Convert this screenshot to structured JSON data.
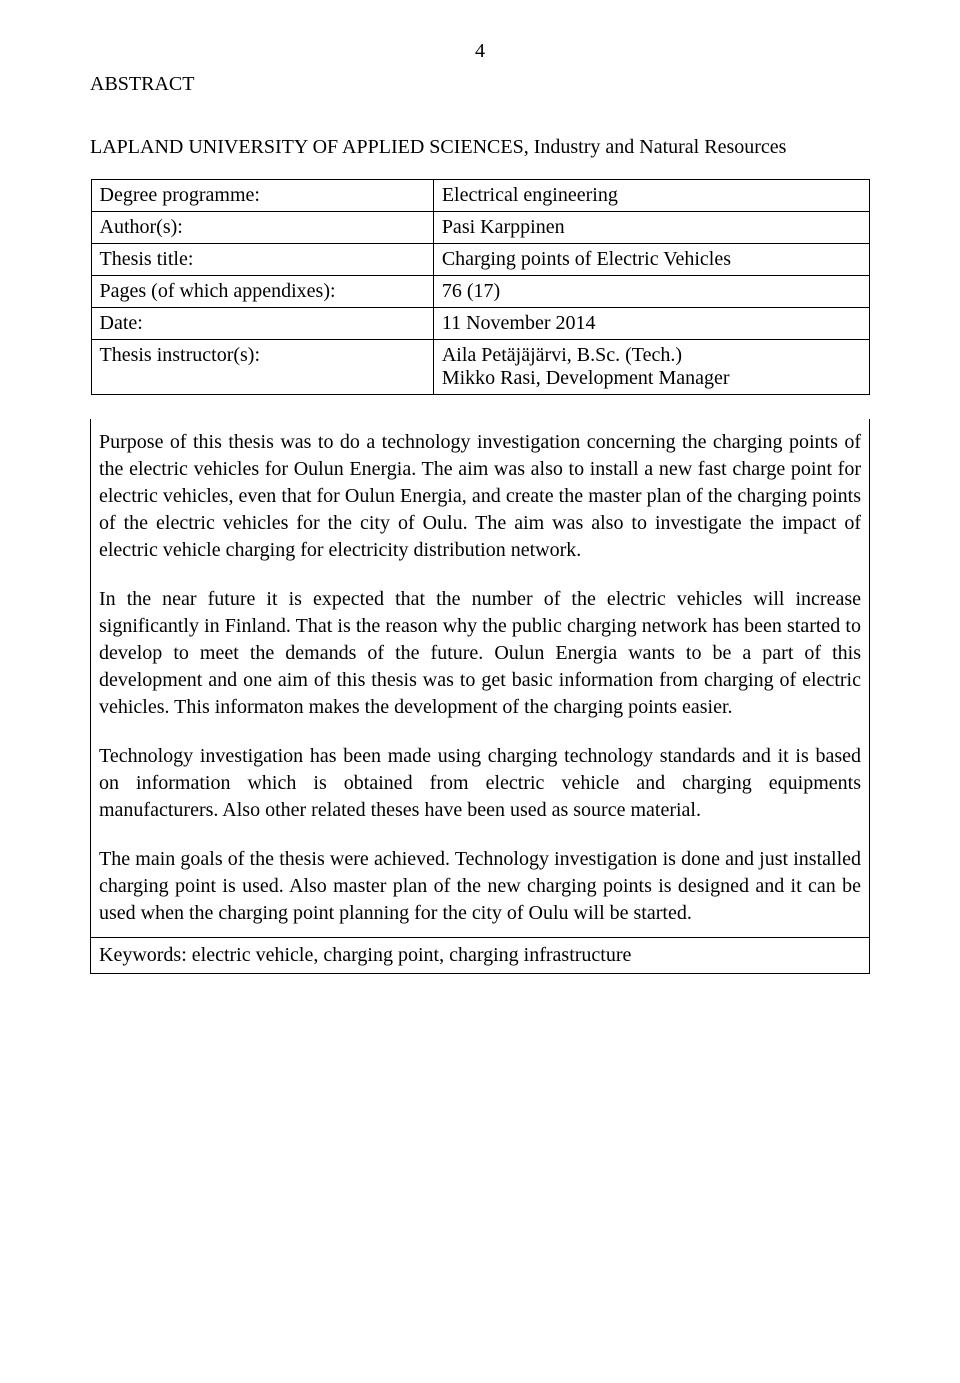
{
  "page_number": "4",
  "section_title": "ABSTRACT",
  "university_line": "LAPLAND UNIVERSITY OF APPLIED SCIENCES, Industry and Natural Resources",
  "meta": {
    "degree_label": "Degree programme:",
    "degree_value": "Electrical engineering",
    "author_label": "Author(s):",
    "author_value": "Pasi Karppinen",
    "title_label": "Thesis title:",
    "title_value": "Charging points of Electric Vehicles",
    "pages_label": "Pages (of which appendixes):",
    "pages_value": "76 (17)",
    "date_label": "Date:",
    "date_value": "11 November 2014",
    "instr_label": "Thesis instructor(s):",
    "instr_value_1": "Aila Petäjäjärvi, B.Sc. (Tech.)",
    "instr_value_2": "Mikko Rasi, Development Manager"
  },
  "body": {
    "p1": "Purpose of this thesis was to do a technology investigation concerning the charging points of the electric vehicles for Oulun Energia. The aim was also to install a new fast charge point for electric vehicles, even that for Oulun Energia, and create the master plan of the charging points of the electric vehicles for the city of Oulu. The aim was also to investigate the impact of electric vehicle charging for electricity distribution network.",
    "p2": "In the near future it is expected that the number of the electric vehicles will increase significantly in Finland. That is the reason why the public charging network has been started to develop to meet the demands of the future. Oulun Energia wants to be a part of this development and one aim of this thesis was to get basic information from charging of electric vehicles. This informaton makes the development of the charging points easier.",
    "p3": "Technology investigation has been made using charging technology standards and it is based on information which is obtained from electric vehicle and charging equipments manufacturers. Also other related theses have been used as source material.",
    "p4": "The main goals of the thesis were achieved. Technology investigation is done and just installed charging point is used. Also master plan of the new charging points is designed and it can be used when the charging point planning for the city of Oulu will be started."
  },
  "keywords": "Keywords: electric vehicle, charging point, charging infrastructure",
  "colors": {
    "text": "#000000",
    "background": "#ffffff",
    "border": "#000000"
  },
  "typography": {
    "font_family": "Times New Roman",
    "base_fontsize_pt": 15
  }
}
